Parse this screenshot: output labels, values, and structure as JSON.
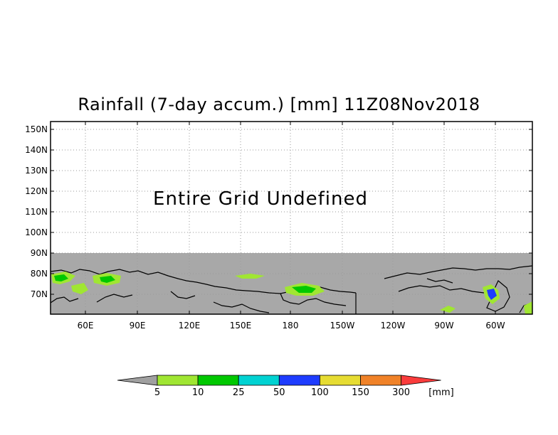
{
  "title": "Rainfall (7-day accum.) [mm] 11Z08Nov2018",
  "message": "Entire Grid Undefined",
  "lat_ticks": [
    "150N",
    "140N",
    "130N",
    "120N",
    "110N",
    "100N",
    "90N",
    "80N",
    "70N"
  ],
  "lon_ticks": [
    "60E",
    "90E",
    "120E",
    "150E",
    "180",
    "150W",
    "120W",
    "90W",
    "60W"
  ],
  "colorbar": {
    "labels": [
      "5",
      "10",
      "25",
      "50",
      "100",
      "150",
      "300"
    ],
    "unit": "[mm]",
    "colors": [
      "#a0a0a0",
      "#a0e632",
      "#00c800",
      "#00d2d2",
      "#1e3cff",
      "#e6dc32",
      "#f08228",
      "#fa3c3c"
    ]
  },
  "colors": {
    "land_mask": "#a8a8a8",
    "grid": "#9a9a9a"
  }
}
